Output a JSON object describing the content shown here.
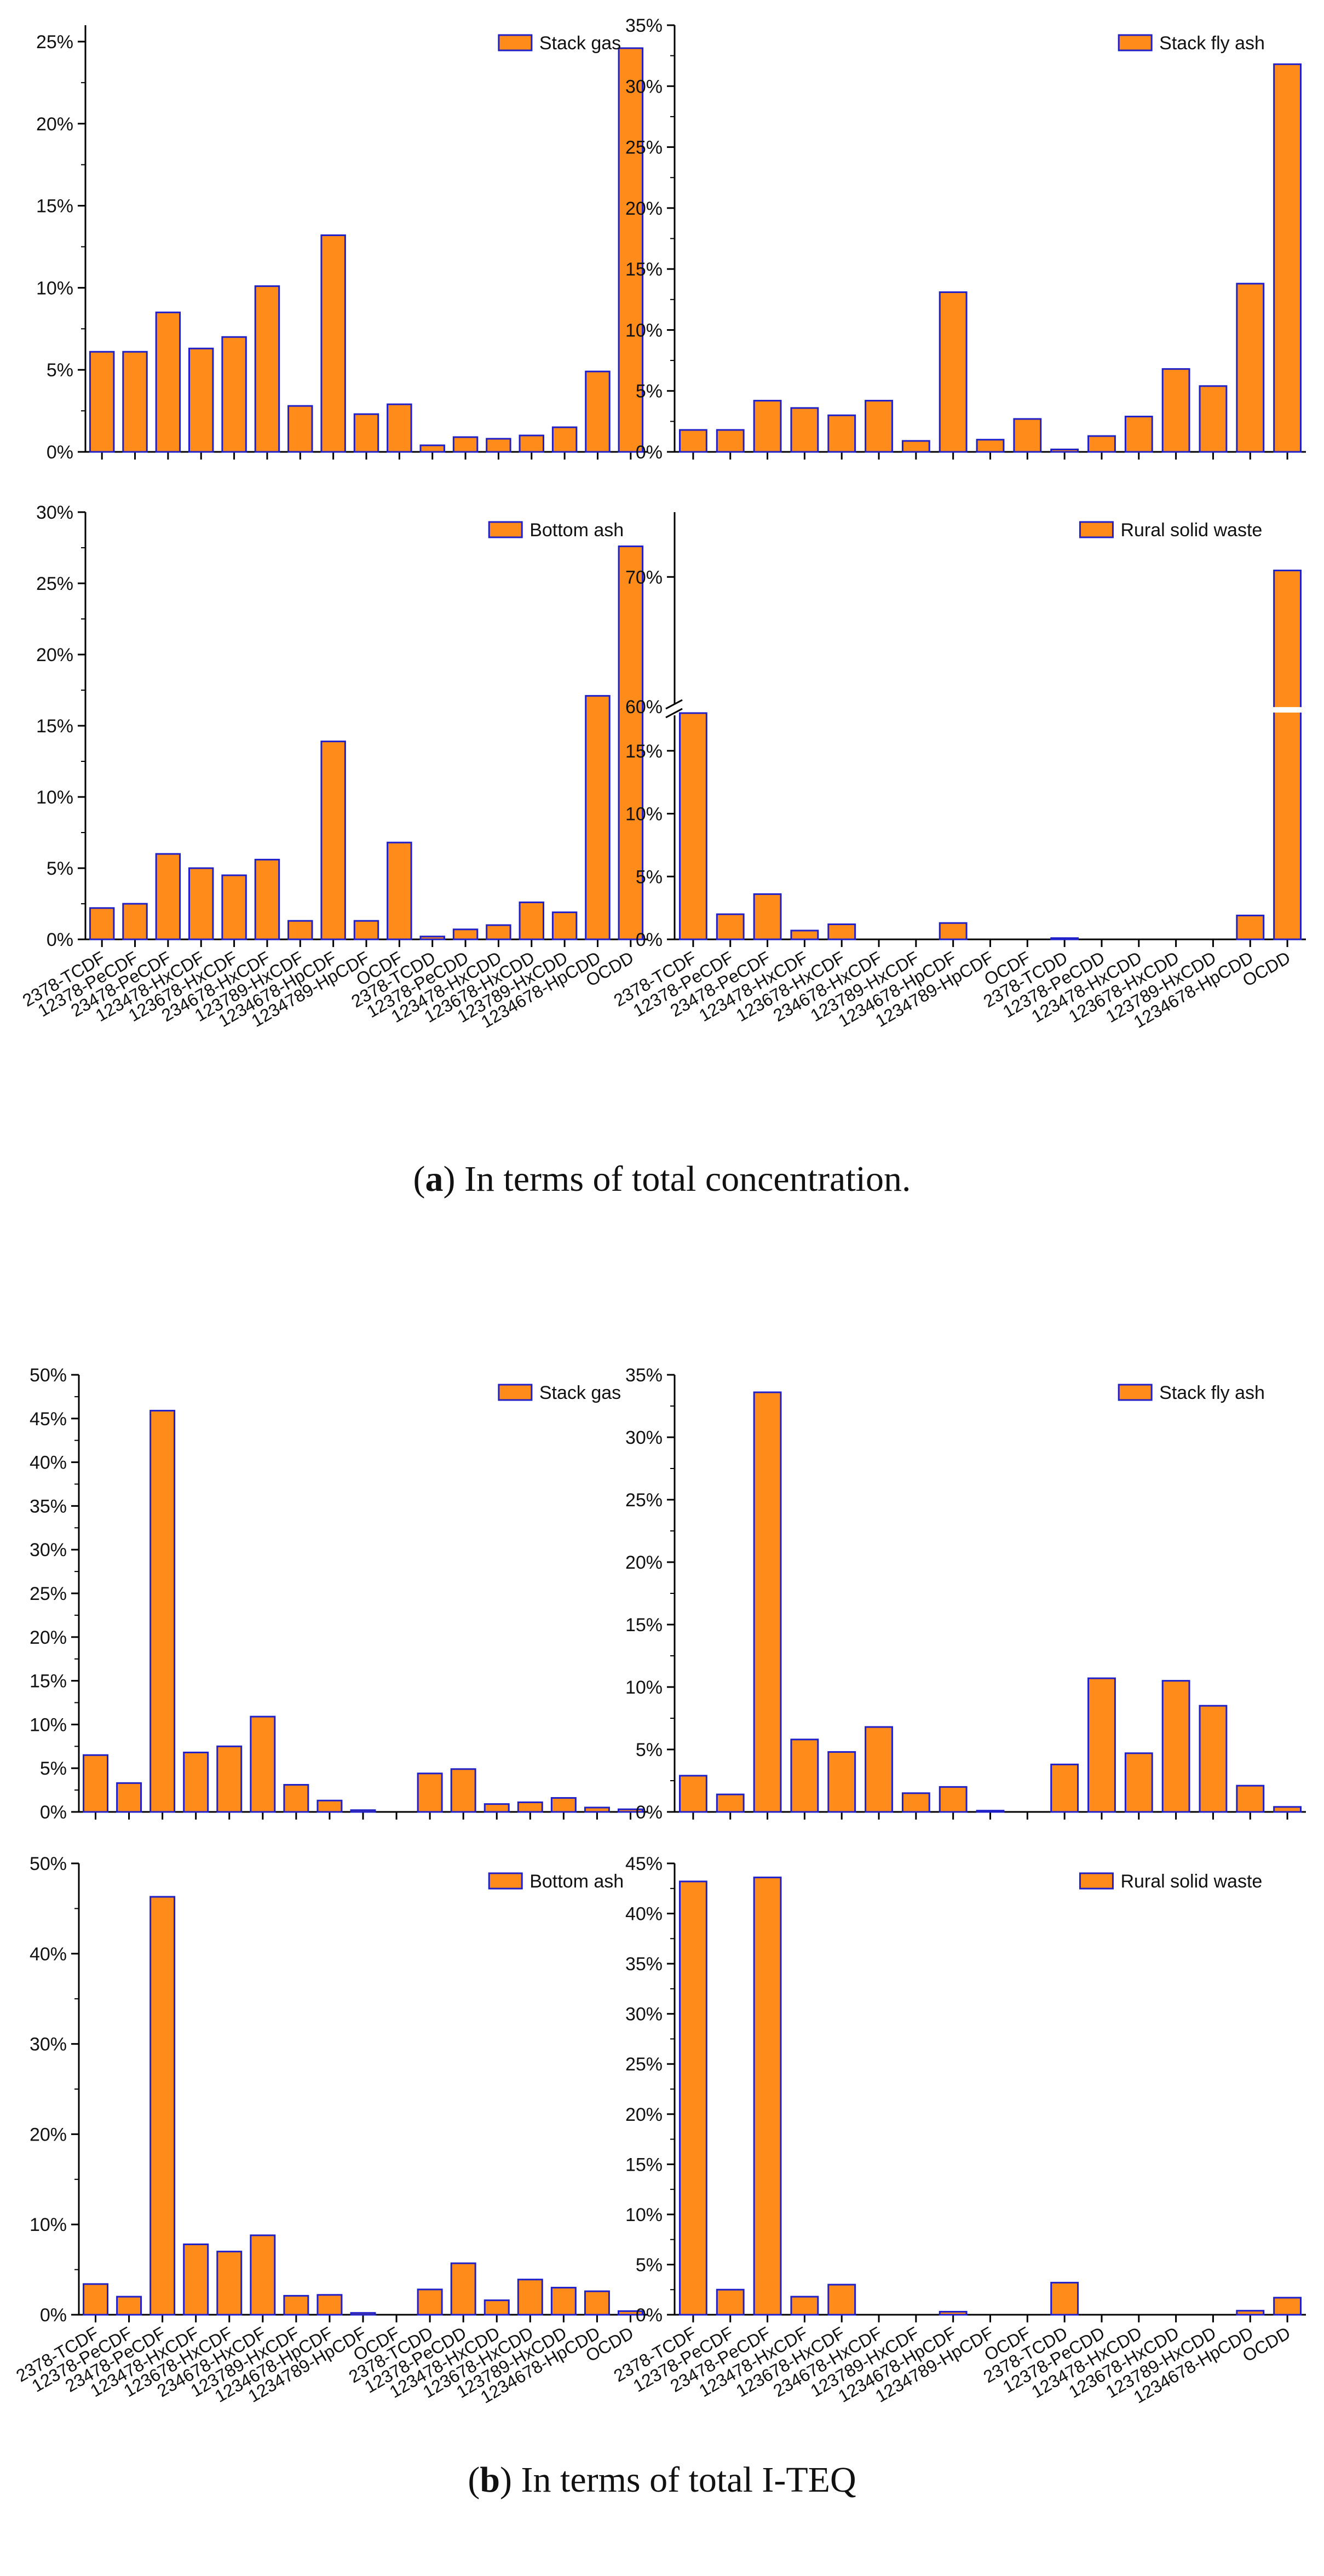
{
  "figure": {
    "caption_a_letter": "a",
    "caption_a_text": ") In terms of total concentration.",
    "caption_b_letter": "b",
    "caption_b_text": ") In terms of total I-TEQ",
    "caption_open_paren": "(",
    "bar_fill": "#ff8c1a",
    "bar_stroke": "#2020c8"
  },
  "chart_data": [
    {
      "id": "a1",
      "type": "bar",
      "legend": "Stack gas",
      "legend_position": "top-right",
      "ylim": [
        0,
        26
      ],
      "yticks": [
        0,
        5,
        10,
        15,
        20,
        25
      ],
      "tick_labels": [
        "0%",
        "5%",
        "10%",
        "15%",
        "20%",
        "25%"
      ],
      "show_x_labels": false,
      "categories": [
        "2378-TCDF",
        "12378-PeCDF",
        "23478-PeCDF",
        "123478-HxCDF",
        "123678-HxCDF",
        "234678-HxCDF",
        "123789-HxCDF",
        "1234678-HpCDF",
        "1234789-HpCDF",
        "OCDF",
        "2378-TCDD",
        "12378-PeCDD",
        "123478-HxCDD",
        "123678-HxCDD",
        "123789-HxCDD",
        "1234678-HpCDD",
        "OCDD"
      ],
      "values": [
        6.1,
        6.1,
        8.5,
        6.3,
        7.0,
        10.1,
        2.8,
        13.2,
        2.3,
        2.9,
        0.4,
        0.9,
        0.8,
        1.0,
        1.5,
        4.9,
        24.6
      ]
    },
    {
      "id": "a2",
      "type": "bar",
      "legend": "Stack fly ash",
      "legend_position": "top-right",
      "ylim": [
        0,
        35
      ],
      "yticks": [
        0,
        5,
        10,
        15,
        20,
        25,
        30,
        35
      ],
      "tick_labels": [
        "0%",
        "5%",
        "10%",
        "15%",
        "20%",
        "25%",
        "30%",
        "35%"
      ],
      "show_x_labels": false,
      "categories": [
        "2378-TCDF",
        "12378-PeCDF",
        "23478-PeCDF",
        "123478-HxCDF",
        "123678-HxCDF",
        "234678-HxCDF",
        "123789-HxCDF",
        "1234678-HpCDF",
        "1234789-HpCDF",
        "OCDF",
        "2378-TCDD",
        "12378-PeCDD",
        "123478-HxCDD",
        "123678-HxCDD",
        "123789-HxCDD",
        "1234678-HpCDD",
        "OCDD"
      ],
      "values": [
        1.8,
        1.8,
        4.2,
        3.6,
        3.0,
        4.2,
        0.9,
        13.1,
        1.0,
        2.7,
        0.2,
        1.3,
        2.9,
        6.8,
        5.4,
        13.8,
        31.8
      ]
    },
    {
      "id": "a3",
      "type": "bar",
      "legend": "Bottom ash",
      "legend_position": "top-right",
      "ylim": [
        0,
        30
      ],
      "yticks": [
        0,
        5,
        10,
        15,
        20,
        25,
        30
      ],
      "tick_labels": [
        "0%",
        "5%",
        "10%",
        "15%",
        "20%",
        "25%",
        "30%"
      ],
      "show_x_labels": true,
      "categories": [
        "2378-TCDF",
        "12378-PeCDF",
        "23478-PeCDF",
        "123478-HxCDF",
        "123678-HxCDF",
        "234678-HxCDF",
        "123789-HxCDF",
        "1234678-HpCDF",
        "1234789-HpCDF",
        "OCDF",
        "2378-TCDD",
        "12378-PeCDD",
        "123478-HxCDD",
        "123678-HxCDD",
        "123789-HxCDD",
        "1234678-HpCDD",
        "OCDD"
      ],
      "values": [
        2.2,
        2.5,
        6.0,
        5.0,
        4.5,
        5.6,
        1.3,
        13.9,
        1.3,
        6.8,
        0.2,
        0.7,
        1.0,
        2.6,
        1.9,
        17.1,
        27.6
      ]
    },
    {
      "id": "a4",
      "type": "bar",
      "legend": "Rural solid waste",
      "legend_position": "top-right",
      "broken_axis": {
        "lower": [
          0,
          18
        ],
        "upper": [
          60,
          75
        ]
      },
      "yticks": [
        0,
        5,
        10,
        15,
        60,
        70
      ],
      "tick_labels": [
        "0%",
        "5%",
        "10%",
        "15%",
        "60%",
        "70%"
      ],
      "show_x_labels": true,
      "categories": [
        "2378-TCDF",
        "12378-PeCDF",
        "23478-PeCDF",
        "123478-HxCDF",
        "123678-HxCDF",
        "234678-HxCDF",
        "123789-HxCDF",
        "1234678-HpCDF",
        "1234789-HpCDF",
        "OCDF",
        "2378-TCDD",
        "12378-PeCDD",
        "123478-HxCDD",
        "123678-HxCDD",
        "123789-HxCDD",
        "1234678-HpCDD",
        "OCDD"
      ],
      "values": [
        18.0,
        2.0,
        3.6,
        0.7,
        1.2,
        0,
        0,
        1.3,
        0,
        0,
        0.1,
        0,
        0,
        0,
        0,
        1.9,
        70.5
      ]
    },
    {
      "id": "b1",
      "type": "bar",
      "legend": "Stack gas",
      "legend_position": "top-right",
      "ylim": [
        0,
        50
      ],
      "yticks": [
        0,
        5,
        10,
        15,
        20,
        25,
        30,
        35,
        40,
        45,
        50
      ],
      "tick_labels": [
        "0%",
        "5%",
        "10%",
        "15%",
        "20%",
        "25%",
        "30%",
        "35%",
        "40%",
        "45%",
        "50%"
      ],
      "show_x_labels": false,
      "categories": [
        "2378-TCDF",
        "12378-PeCDF",
        "23478-PeCDF",
        "123478-HxCDF",
        "123678-HxCDF",
        "234678-HxCDF",
        "123789-HxCDF",
        "1234678-HpCDF",
        "1234789-HpCDF",
        "OCDF",
        "2378-TCDD",
        "12378-PeCDD",
        "123478-HxCDD",
        "123678-HxCDD",
        "123789-HxCDD",
        "1234678-HpCDD",
        "OCDD"
      ],
      "values": [
        6.5,
        3.3,
        45.9,
        6.8,
        7.5,
        10.9,
        3.1,
        1.3,
        0.2,
        0,
        4.4,
        4.9,
        0.9,
        1.1,
        1.6,
        0.5,
        0.3
      ]
    },
    {
      "id": "b2",
      "type": "bar",
      "legend": "Stack fly ash",
      "legend_position": "top-right",
      "ylim": [
        0,
        35
      ],
      "yticks": [
        0,
        5,
        10,
        15,
        20,
        25,
        30,
        35
      ],
      "tick_labels": [
        "0%",
        "5%",
        "10%",
        "15%",
        "20%",
        "25%",
        "30%",
        "35%"
      ],
      "show_x_labels": false,
      "categories": [
        "2378-TCDF",
        "12378-PeCDF",
        "23478-PeCDF",
        "123478-HxCDF",
        "123678-HxCDF",
        "234678-HxCDF",
        "123789-HxCDF",
        "1234678-HpCDF",
        "1234789-HpCDF",
        "OCDF",
        "2378-TCDD",
        "12378-PeCDD",
        "123478-HxCDD",
        "123678-HxCDD",
        "123789-HxCDD",
        "1234678-HpCDD",
        "OCDD"
      ],
      "values": [
        2.9,
        1.4,
        33.6,
        5.8,
        4.8,
        6.8,
        1.5,
        2.0,
        0.1,
        0,
        3.8,
        10.7,
        4.7,
        10.5,
        8.5,
        2.1,
        0.4
      ]
    },
    {
      "id": "b3",
      "type": "bar",
      "legend": "Bottom ash",
      "legend_position": "top-right",
      "ylim": [
        0,
        50
      ],
      "yticks": [
        0,
        10,
        20,
        30,
        40,
        50
      ],
      "tick_labels": [
        "0%",
        "10%",
        "20%",
        "30%",
        "40%",
        "50%"
      ],
      "show_x_labels": true,
      "categories": [
        "2378-TCDF",
        "12378-PeCDF",
        "23478-PeCDF",
        "123478-HxCDF",
        "123678-HxCDF",
        "234678-HxCDF",
        "123789-HxCDF",
        "1234678-HpCDF",
        "1234789-HpCDF",
        "OCDF",
        "2378-TCDD",
        "12378-PeCDD",
        "123478-HxCDD",
        "123678-HxCDD",
        "123789-HxCDD",
        "1234678-HpCDD",
        "OCDD"
      ],
      "values": [
        3.4,
        2.0,
        46.3,
        7.8,
        7.0,
        8.8,
        2.1,
        2.2,
        0.2,
        0,
        2.8,
        5.7,
        1.6,
        3.9,
        3.0,
        2.6,
        0.4
      ]
    },
    {
      "id": "b4",
      "type": "bar",
      "legend": "Rural solid waste",
      "legend_position": "top-right",
      "ylim": [
        0,
        45
      ],
      "yticks": [
        0,
        5,
        10,
        15,
        20,
        25,
        30,
        35,
        40,
        45
      ],
      "tick_labels": [
        "0%",
        "5%",
        "10%",
        "15%",
        "20%",
        "25%",
        "30%",
        "35%",
        "40%",
        "45%"
      ],
      "show_x_labels": true,
      "categories": [
        "2378-TCDF",
        "12378-PeCDF",
        "23478-PeCDF",
        "123478-HxCDF",
        "123678-HxCDF",
        "234678-HxCDF",
        "123789-HxCDF",
        "1234678-HpCDF",
        "1234789-HpCDF",
        "OCDF",
        "2378-TCDD",
        "12378-PeCDD",
        "123478-HxCDD",
        "123678-HxCDD",
        "123789-HxCDD",
        "1234678-HpCDD",
        "OCDD"
      ],
      "values": [
        43.2,
        2.5,
        43.6,
        1.8,
        3.0,
        0,
        0,
        0.3,
        0,
        0,
        3.2,
        0,
        0,
        0,
        0,
        0.4,
        1.7
      ]
    }
  ]
}
